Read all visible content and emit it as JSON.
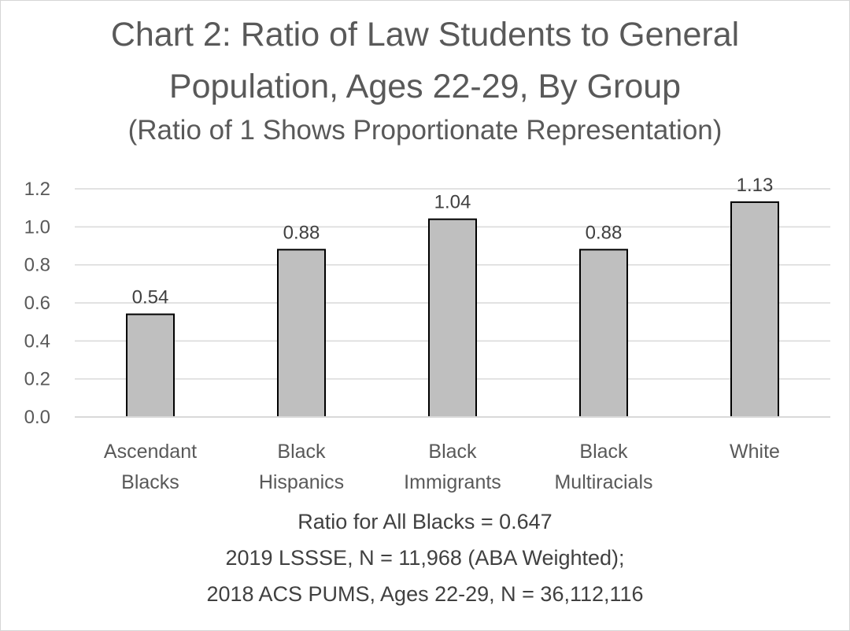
{
  "chart_data": {
    "type": "bar",
    "title": "Chart 2: Ratio of Law Students to General Population, Ages 22-29, By Group",
    "title_lines": [
      "Chart 2: Ratio of Law Students to General",
      "Population, Ages 22-29, By Group"
    ],
    "subtitle": "(Ratio of 1 Shows Proportionate Representation)",
    "categories": [
      [
        "Ascendant",
        "Blacks"
      ],
      [
        "Black",
        "Hispanics"
      ],
      [
        "Black",
        "Immigrants"
      ],
      [
        "Black",
        "Multiracials"
      ],
      [
        "White"
      ]
    ],
    "values": [
      0.54,
      0.88,
      1.04,
      0.88,
      1.13
    ],
    "data_labels": [
      "0.54",
      "0.88",
      "1.04",
      "0.88",
      "1.13"
    ],
    "ylim": [
      0,
      1.2
    ],
    "yticks": [
      "0.0",
      "0.2",
      "0.4",
      "0.6",
      "0.8",
      "1.0",
      "1.2"
    ],
    "grid": true,
    "bar_color": "#bfbfbf",
    "bar_edge_color": "#000000",
    "grid_color": "#d9d9d9",
    "xlabel": "",
    "ylabel": "",
    "footnotes": [
      "Ratio for All Blacks = 0.647",
      "2019 LSSSE, N = 11,968 (ABA Weighted);",
      "2018 ACS PUMS, Ages 22-29, N = 36,112,116"
    ]
  }
}
